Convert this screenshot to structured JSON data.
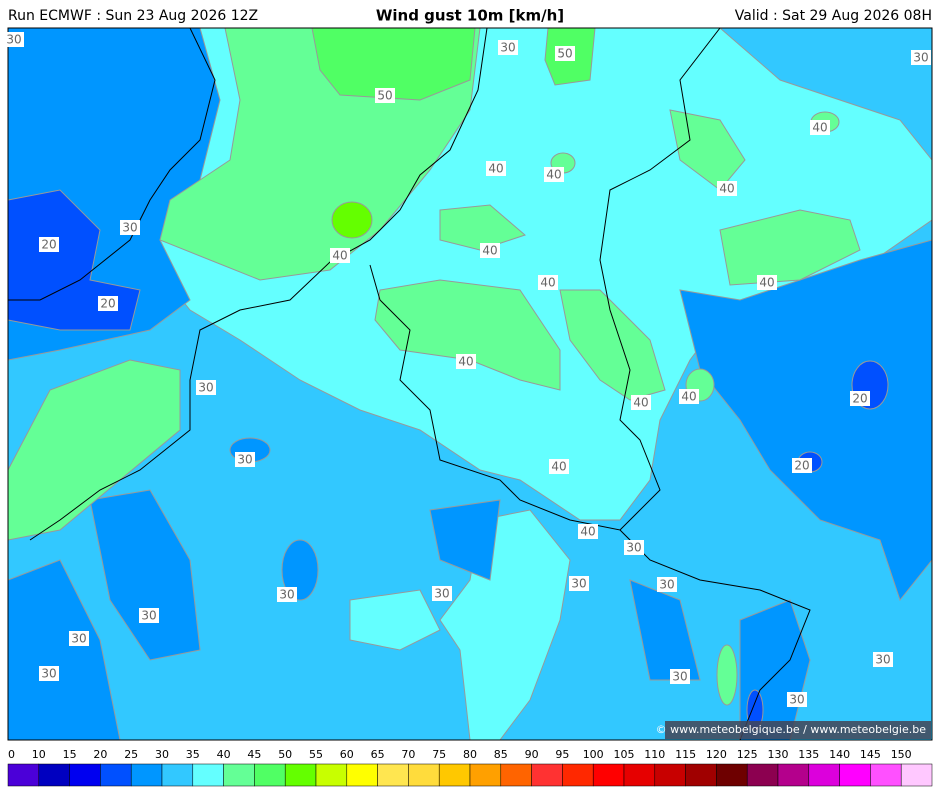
{
  "header": {
    "run": "Run ECMWF : Sun 23 Aug 2026 12Z",
    "title": "Wind gust 10m [km/h]",
    "valid": "Valid : Sat 29 Aug 2026 08H"
  },
  "contour_labels": [
    "30",
    "30",
    "50",
    "50",
    "30",
    "40",
    "40",
    "40",
    "40",
    "30",
    "20",
    "40",
    "40",
    "40",
    "40",
    "20",
    "40",
    "30",
    "40",
    "40",
    "20",
    "30",
    "40",
    "20",
    "40",
    "30",
    "30",
    "30",
    "30",
    "30",
    "30",
    "30",
    "30",
    "30",
    "30",
    "30"
  ],
  "copyright": "© www.meteobelgique.be / www.meteobelgie.be",
  "colorbar": {
    "ticks": [
      0,
      10,
      15,
      20,
      25,
      30,
      35,
      40,
      45,
      50,
      55,
      60,
      65,
      70,
      75,
      80,
      85,
      90,
      95,
      100,
      105,
      110,
      115,
      120,
      125,
      130,
      135,
      140,
      145,
      150
    ],
    "colors": [
      "#4b00d8",
      "#0000c0",
      "#0000f0",
      "#0050ff",
      "#0096ff",
      "#32c8ff",
      "#64ffff",
      "#64ff96",
      "#50ff64",
      "#64ff00",
      "#c8ff00",
      "#ffff00",
      "#ffe650",
      "#ffdc3c",
      "#ffc800",
      "#ffa000",
      "#ff6400",
      "#ff3232",
      "#ff2800",
      "#ff0000",
      "#e60000",
      "#c80000",
      "#a00000",
      "#6e0000",
      "#8c0050",
      "#b4008c",
      "#dc00dc",
      "#ff00ff",
      "#ff50ff",
      "#ffc8ff"
    ]
  }
}
